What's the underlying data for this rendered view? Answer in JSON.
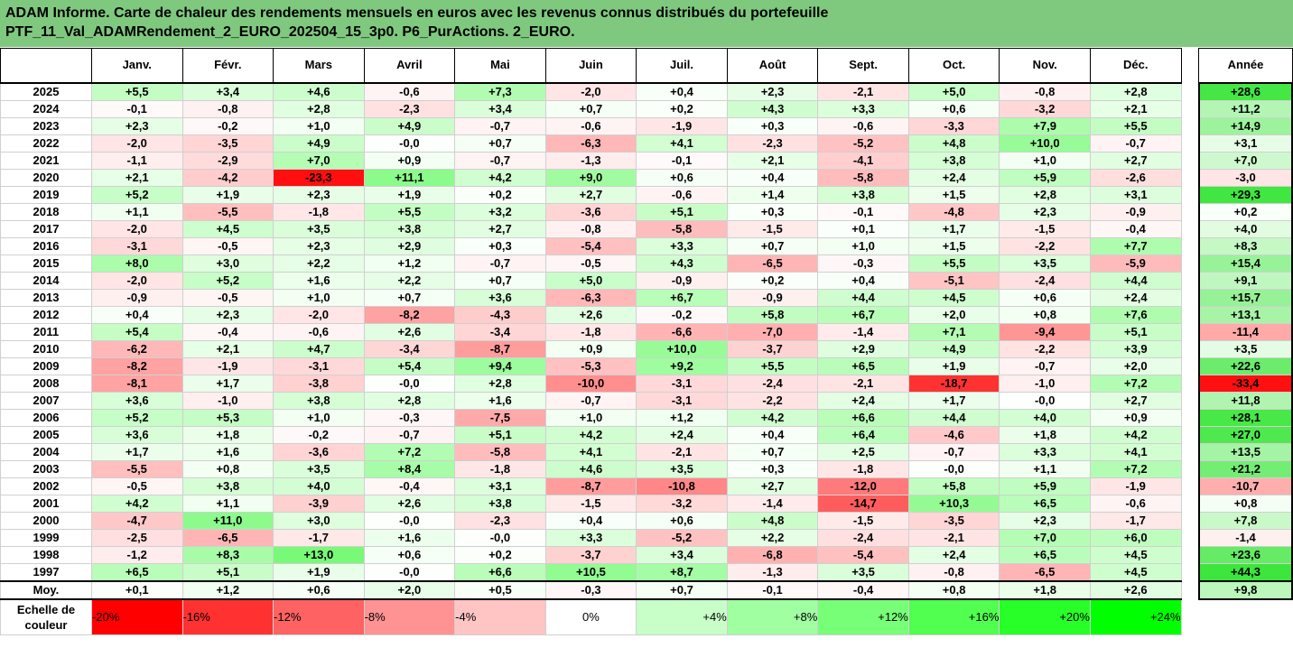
{
  "title": {
    "line1": "ADAM Informe. Carte de chaleur des rendements mensuels en euros avec les revenus connus distribués du portefeuille",
    "line2": "PTF_11_Val_ADAMRendement_2_EURO_202504_15_3p0. P6_PurActions. 2_EURO."
  },
  "colors": {
    "title_background": "#7fc97f",
    "negative": "#ff0000",
    "neutral": "#ffffff",
    "positive": "#00ff00"
  },
  "chart_data": {
    "type": "heatmap",
    "columns": [
      "Janv.",
      "Févr.",
      "Mars",
      "Avril",
      "Mai",
      "Juin",
      "Juil.",
      "Août",
      "Sept.",
      "Oct.",
      "Nov.",
      "Déc."
    ],
    "annual_column": "Année",
    "rows": [
      {
        "year": "2025",
        "months": [
          "+5,5",
          "+3,4",
          "+4,6",
          "-0,6",
          "+7,3",
          "-2,0",
          "+0,4",
          "+2,3",
          "-2,1",
          "+5,0",
          "-0,8",
          "+2,8"
        ],
        "annual": "+28,6"
      },
      {
        "year": "2024",
        "months": [
          "-0,1",
          "-0,8",
          "+2,8",
          "-2,3",
          "+3,4",
          "+0,7",
          "+0,2",
          "+4,3",
          "+3,3",
          "+0,6",
          "-3,2",
          "+2,1"
        ],
        "annual": "+11,2"
      },
      {
        "year": "2023",
        "months": [
          "+2,3",
          "-0,2",
          "+1,0",
          "+4,9",
          "-0,7",
          "-0,6",
          "-1,9",
          "+0,3",
          "-0,6",
          "-3,3",
          "+7,9",
          "+5,5"
        ],
        "annual": "+14,9"
      },
      {
        "year": "2022",
        "months": [
          "-2,0",
          "-3,5",
          "+4,9",
          "-0,0",
          "+0,7",
          "-6,3",
          "+4,1",
          "-2,3",
          "-5,2",
          "+4,8",
          "+10,0",
          "-0,7"
        ],
        "annual": "+3,1"
      },
      {
        "year": "2021",
        "months": [
          "-1,1",
          "-2,9",
          "+7,0",
          "+0,9",
          "-0,7",
          "-1,3",
          "-0,1",
          "+2,1",
          "-4,1",
          "+3,8",
          "+1,0",
          "+2,7"
        ],
        "annual": "+7,0"
      },
      {
        "year": "2020",
        "months": [
          "+2,1",
          "-4,2",
          "-23,3",
          "+11,1",
          "+4,2",
          "+9,0",
          "+0,6",
          "+0,4",
          "-5,8",
          "+2,4",
          "+5,9",
          "-2,6"
        ],
        "annual": "-3,0"
      },
      {
        "year": "2019",
        "months": [
          "+5,2",
          "+1,9",
          "+2,3",
          "+1,9",
          "+0,2",
          "+2,7",
          "-0,6",
          "+1,4",
          "+3,8",
          "+1,5",
          "+2,8",
          "+3,1"
        ],
        "annual": "+29,3"
      },
      {
        "year": "2018",
        "months": [
          "+1,1",
          "-5,5",
          "-1,8",
          "+5,5",
          "+3,2",
          "-3,6",
          "+5,1",
          "+0,3",
          "-0,1",
          "-4,8",
          "+2,3",
          "-0,9"
        ],
        "annual": "+0,2"
      },
      {
        "year": "2017",
        "months": [
          "-2,0",
          "+4,5",
          "+3,5",
          "+3,8",
          "+2,7",
          "-0,8",
          "-5,8",
          "-1,5",
          "+0,1",
          "+1,7",
          "-1,5",
          "-0,4"
        ],
        "annual": "+4,0"
      },
      {
        "year": "2016",
        "months": [
          "-3,1",
          "-0,5",
          "+2,3",
          "+2,9",
          "+0,3",
          "-5,4",
          "+3,3",
          "+0,7",
          "+1,0",
          "+1,5",
          "-2,2",
          "+7,7"
        ],
        "annual": "+8,3"
      },
      {
        "year": "2015",
        "months": [
          "+8,0",
          "+3,0",
          "+2,2",
          "+1,2",
          "-0,7",
          "-0,5",
          "+4,3",
          "-6,5",
          "-0,3",
          "+5,5",
          "+3,5",
          "-5,9"
        ],
        "annual": "+15,4"
      },
      {
        "year": "2014",
        "months": [
          "-2,0",
          "+5,2",
          "+1,6",
          "+2,2",
          "+0,7",
          "+5,0",
          "-0,9",
          "+0,2",
          "+0,4",
          "-5,1",
          "-2,4",
          "+4,4"
        ],
        "annual": "+9,1"
      },
      {
        "year": "2013",
        "months": [
          "-0,9",
          "-0,5",
          "+1,0",
          "+0,7",
          "+3,6",
          "-6,3",
          "+6,7",
          "-0,9",
          "+4,4",
          "+4,5",
          "+0,6",
          "+2,4"
        ],
        "annual": "+15,7"
      },
      {
        "year": "2012",
        "months": [
          "+0,4",
          "+2,3",
          "-2,0",
          "-8,2",
          "-4,3",
          "+2,6",
          "-0,2",
          "+5,8",
          "+6,7",
          "+2,0",
          "+0,8",
          "+7,6"
        ],
        "annual": "+13,1"
      },
      {
        "year": "2011",
        "months": [
          "+5,4",
          "-0,4",
          "-0,6",
          "+2,6",
          "-3,4",
          "-1,8",
          "-6,6",
          "-7,0",
          "-1,4",
          "+7,1",
          "-9,4",
          "+5,1"
        ],
        "annual": "-11,4"
      },
      {
        "year": "2010",
        "months": [
          "-6,2",
          "+2,1",
          "+4,7",
          "-3,4",
          "-8,7",
          "+0,9",
          "+10,0",
          "-3,7",
          "+2,9",
          "+4,9",
          "-2,2",
          "+3,9"
        ],
        "annual": "+3,5"
      },
      {
        "year": "2009",
        "months": [
          "-8,2",
          "-1,9",
          "-3,1",
          "+5,4",
          "+9,4",
          "-5,3",
          "+9,2",
          "+5,5",
          "+6,5",
          "+1,9",
          "-0,7",
          "+2,0"
        ],
        "annual": "+22,6"
      },
      {
        "year": "2008",
        "months": [
          "-8,1",
          "+1,7",
          "-3,8",
          "-0,0",
          "+2,8",
          "-10,0",
          "-3,1",
          "-2,4",
          "-2,1",
          "-18,7",
          "-1,0",
          "+7,2"
        ],
        "annual": "-33,4"
      },
      {
        "year": "2007",
        "months": [
          "+3,6",
          "-1,0",
          "+3,8",
          "+2,8",
          "+1,6",
          "-0,7",
          "-3,1",
          "-2,2",
          "+2,4",
          "+1,7",
          "-0,0",
          "+2,7"
        ],
        "annual": "+11,8"
      },
      {
        "year": "2006",
        "months": [
          "+5,2",
          "+5,3",
          "+1,0",
          "-0,3",
          "-7,5",
          "+1,0",
          "+1,2",
          "+4,2",
          "+6,6",
          "+4,4",
          "+4,0",
          "+0,9"
        ],
        "annual": "+28,1"
      },
      {
        "year": "2005",
        "months": [
          "+3,6",
          "+1,8",
          "-0,2",
          "-0,7",
          "+5,1",
          "+4,2",
          "+2,4",
          "+0,4",
          "+6,4",
          "-4,6",
          "+1,8",
          "+4,2"
        ],
        "annual": "+27,0"
      },
      {
        "year": "2004",
        "months": [
          "+1,7",
          "+1,6",
          "-3,6",
          "+7,2",
          "-5,8",
          "+4,1",
          "-2,1",
          "+0,7",
          "+2,5",
          "-0,7",
          "+3,3",
          "+4,1"
        ],
        "annual": "+13,5"
      },
      {
        "year": "2003",
        "months": [
          "-5,5",
          "+0,8",
          "+3,5",
          "+8,4",
          "-1,8",
          "+4,6",
          "+3,5",
          "+0,3",
          "-1,8",
          "-0,0",
          "+1,1",
          "+7,2"
        ],
        "annual": "+21,2"
      },
      {
        "year": "2002",
        "months": [
          "-0,5",
          "+3,8",
          "+4,0",
          "-0,4",
          "+3,1",
          "-8,7",
          "-10,8",
          "+2,7",
          "-12,0",
          "+5,8",
          "+5,9",
          "-1,9"
        ],
        "annual": "-10,7"
      },
      {
        "year": "2001",
        "months": [
          "+4,2",
          "+1,1",
          "-3,9",
          "+2,6",
          "+3,8",
          "-1,5",
          "-3,2",
          "-1,4",
          "-14,7",
          "+10,3",
          "+6,5",
          "-0,6"
        ],
        "annual": "+0,8"
      },
      {
        "year": "2000",
        "months": [
          "-4,7",
          "+11,0",
          "+3,0",
          "-0,0",
          "-2,3",
          "+0,4",
          "+0,6",
          "+4,8",
          "-1,5",
          "-3,5",
          "+2,3",
          "-1,7"
        ],
        "annual": "+7,8"
      },
      {
        "year": "1999",
        "months": [
          "-2,5",
          "-6,5",
          "-1,7",
          "+1,6",
          "-0,0",
          "+3,3",
          "-5,2",
          "+2,2",
          "-2,4",
          "-2,1",
          "+7,0",
          "+6,0"
        ],
        "annual": "-1,4"
      },
      {
        "year": "1998",
        "months": [
          "-1,2",
          "+8,3",
          "+13,0",
          "+0,6",
          "+0,2",
          "-3,7",
          "+3,4",
          "-6,8",
          "-5,4",
          "+2,4",
          "+6,5",
          "+4,5"
        ],
        "annual": "+23,6"
      },
      {
        "year": "1997",
        "months": [
          "+6,5",
          "+5,1",
          "+1,9",
          "-0,0",
          "+6,6",
          "+10,5",
          "+8,7",
          "-1,3",
          "+3,5",
          "-0,8",
          "-6,5",
          "+4,5"
        ],
        "annual": "+44,3"
      }
    ],
    "average": {
      "label": "Moy.",
      "months": [
        "+0,1",
        "+1,2",
        "+0,6",
        "+2,0",
        "+0,5",
        "-0,3",
        "+0,7",
        "-0,1",
        "-0,4",
        "+0,8",
        "+1,8",
        "+2,6"
      ],
      "annual": "+9,8"
    },
    "color_scale": {
      "label": "Echelle de couleur",
      "stops": [
        "-20%",
        "-16%",
        "-12%",
        "-8%",
        "-4%",
        "0%",
        "+4%",
        "+8%",
        "+12%",
        "+16%",
        "+20%",
        "+24%"
      ],
      "stop_values": [
        -20,
        -16,
        -12,
        -8,
        -4,
        0,
        4,
        8,
        12,
        16,
        20,
        24
      ]
    }
  }
}
